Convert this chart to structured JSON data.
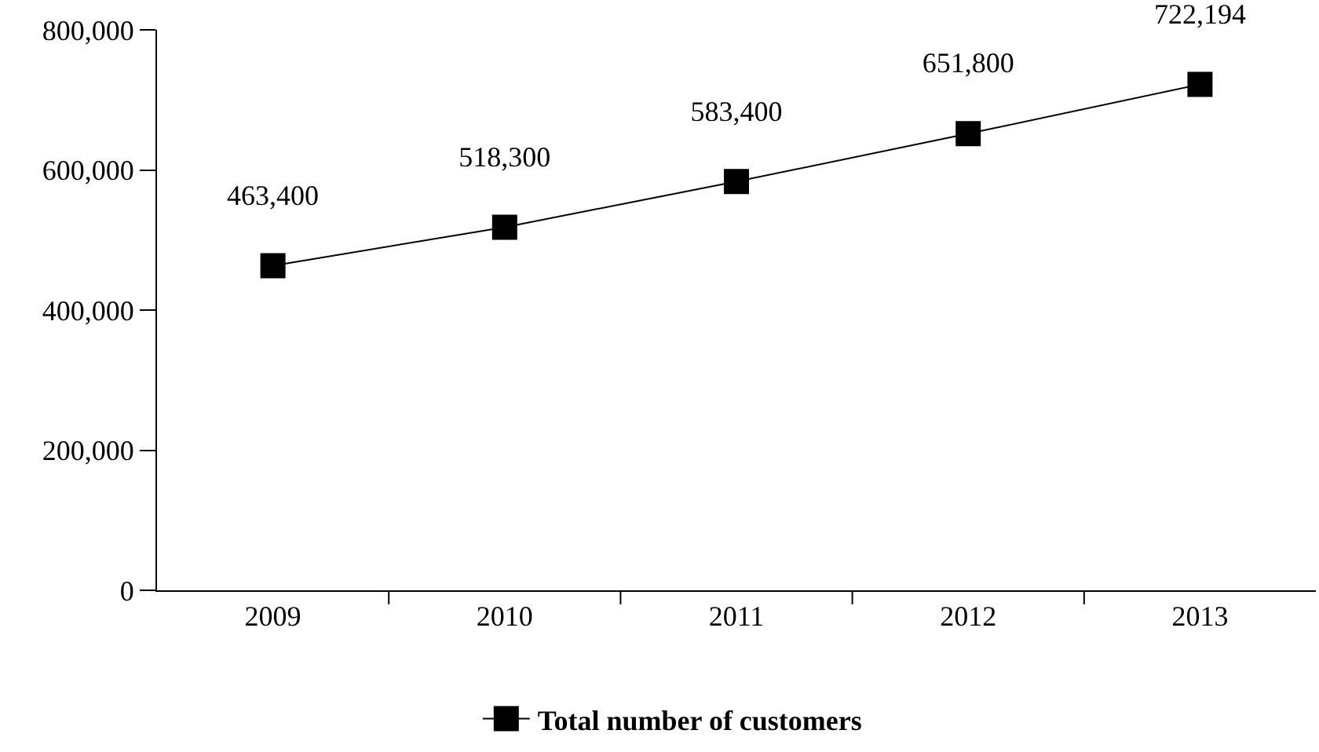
{
  "chart_data": {
    "type": "line",
    "categories": [
      "2009",
      "2010",
      "2011",
      "2012",
      "2013"
    ],
    "series": [
      {
        "name": "Total number of customers",
        "color": "#000000",
        "values": [
          463400,
          518300,
          583400,
          651800,
          722194
        ],
        "value_labels": [
          "463,400",
          "518,300",
          "583,400",
          "651,800",
          "722,194"
        ]
      }
    ],
    "ylim": [
      0,
      800000
    ],
    "yticks": [
      {
        "value": 0,
        "label": "0"
      },
      {
        "value": 200000,
        "label": "200,000"
      },
      {
        "value": 400000,
        "label": "400,000"
      },
      {
        "value": 600000,
        "label": "600,000"
      },
      {
        "value": 800000,
        "label": "800,000"
      }
    ],
    "legend": "bottom",
    "marker": "square"
  }
}
